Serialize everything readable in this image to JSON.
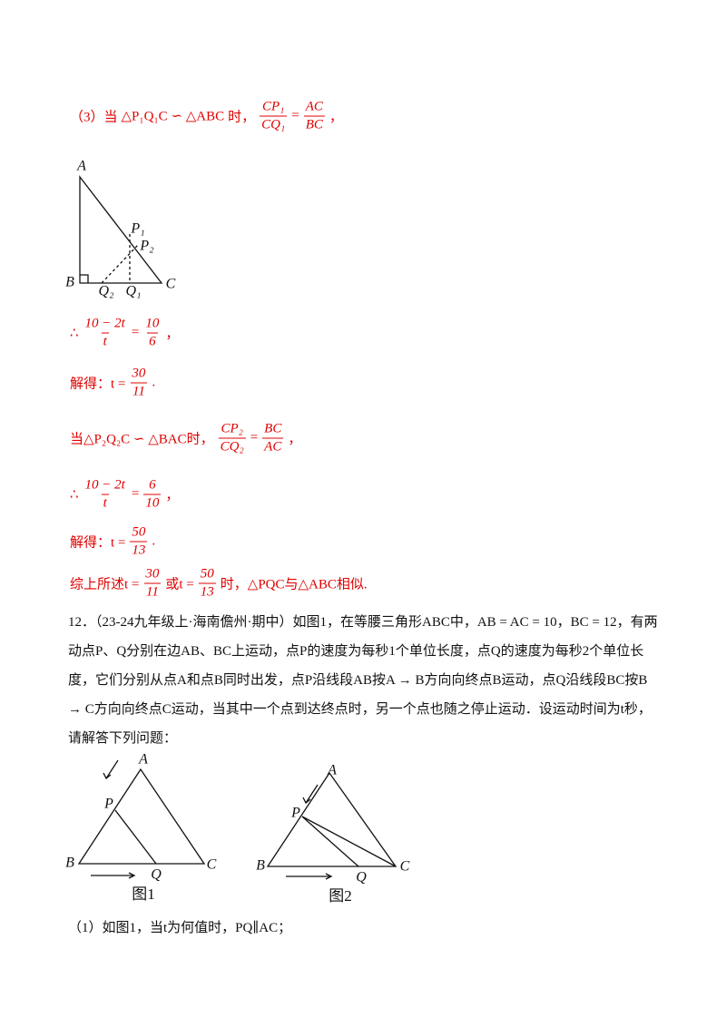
{
  "solution": {
    "color": "#e00000",
    "lines": [
      {
        "tokens": [
          "（3）当",
          "△P₁Q₁C ∽ △ABC",
          "时，",
          {
            "num": "CP₁",
            "den": "CQ₁"
          },
          "=",
          {
            "num": "AC",
            "den": "BC"
          },
          "，"
        ]
      },
      {
        "tokens": [
          "∴",
          {
            "num": "10 − 2t",
            "den": "t"
          },
          "=",
          {
            "num": "10",
            "den": "6"
          },
          "，"
        ]
      },
      {
        "tokens": [
          "解得：t =",
          {
            "num": "30",
            "den": "11"
          },
          "."
        ]
      },
      {
        "tokens": [
          "当△P₂Q₂C ∽ △BAC时，",
          {
            "num": "CP₂",
            "den": "CQ₂"
          },
          "=",
          {
            "num": "BC",
            "den": "AC"
          },
          "，"
        ]
      },
      {
        "tokens": [
          "∴",
          {
            "num": "10 − 2t",
            "den": "t"
          },
          "=",
          {
            "num": "6",
            "den": "10"
          },
          "，"
        ]
      },
      {
        "tokens": [
          "解得：t =",
          {
            "num": "50",
            "den": "13"
          },
          "."
        ]
      },
      {
        "tokens": [
          "综上所述t =",
          {
            "num": "30",
            "den": "11"
          },
          "或t =",
          {
            "num": "50",
            "den": "13"
          },
          "时，△PQC与△ABC相似."
        ]
      }
    ]
  },
  "figure_a": {
    "labels": [
      "A",
      "B",
      "C",
      "P₁",
      "P₂",
      "Q₂",
      "Q₁"
    ]
  },
  "problem": {
    "text": "12．（23-24九年级上·海南儋州·期中）如图1，在等腰三角形ABC中，AB = AC = 10，BC = 12，有两动点P、Q分别在边AB、BC上运动，点P的速度为每秒1个单位长度，点Q的速度为每秒2个单位长度，它们分别从点A和点B同时出发，点P沿线段AB按A → B方向向终点B运动，点Q沿线段BC按B → C方向向终点C运动，当其中一个点到达终点时，另一个点也随之停止运动．设运动时间为t秒，请解答下列问题：",
    "figure1": {
      "labels": [
        "A",
        "B",
        "C",
        "P",
        "Q"
      ],
      "caption": "图1"
    },
    "figure2": {
      "labels": [
        "A",
        "B",
        "C",
        "P",
        "Q"
      ],
      "caption": "图2"
    },
    "question1": "（1）如图1，当t为何值时，PQ∥AC；"
  }
}
